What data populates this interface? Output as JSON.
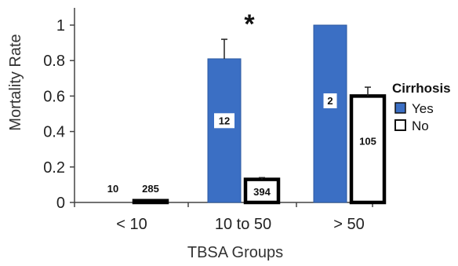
{
  "chart_data": {
    "type": "bar",
    "title": "",
    "xlabel": "TBSA Groups",
    "ylabel": "Mortality Rate",
    "ylim": [
      0,
      1.1
    ],
    "yticks": [
      "0",
      "0.2",
      "0.4",
      "0.6",
      "0.8",
      "1"
    ],
    "categories": [
      "< 10",
      "10 to 50",
      "> 50"
    ],
    "legend": {
      "title": "Cirrhosis",
      "position": "right"
    },
    "series": [
      {
        "name": "Yes",
        "color": "#3b6fc4",
        "values": [
          0,
          0.81,
          1.0
        ],
        "error": [
          0,
          0.11,
          0
        ],
        "counts": [
          "10",
          "12",
          "2"
        ]
      },
      {
        "name": "No",
        "color": "#ffffff",
        "values": [
          0.01,
          0.13,
          0.6
        ],
        "error": [
          0,
          0.01,
          0.05
        ],
        "counts": [
          "285",
          "394",
          "105"
        ]
      }
    ],
    "annotations": [
      {
        "text": "*",
        "category": "10 to 50"
      }
    ],
    "grid": false
  }
}
